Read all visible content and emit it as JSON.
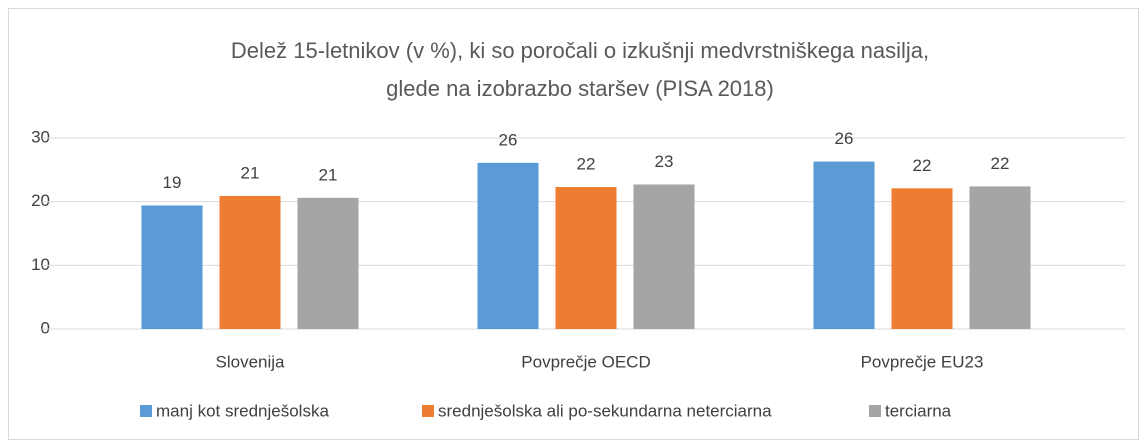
{
  "chart_data": {
    "type": "bar",
    "title": [
      "Delež 15-letnikov (v %), ki so poročali o izkušnji medvrstniškega nasilja,",
      "glede na izobrazbo staršev   (PISA 2018)"
    ],
    "categories": [
      "Slovenija",
      "Povprečje OECD",
      "Povprečje EU23"
    ],
    "series": [
      {
        "name": "manj kot srednješolska",
        "color": "#5b9bd5",
        "values": [
          19.4,
          26.1,
          26.3
        ],
        "value_labels": [
          "19",
          "26",
          "26"
        ]
      },
      {
        "name": "srednješolska ali po-sekundarna neterciarna",
        "color": "#ed7d31",
        "values": [
          20.9,
          22.3,
          22.1
        ],
        "value_labels": [
          "21",
          "22",
          "22"
        ]
      },
      {
        "name": "terciarna",
        "color": "#a5a5a5",
        "values": [
          20.6,
          22.7,
          22.4
        ],
        "value_labels": [
          "21",
          "23",
          "22"
        ]
      }
    ],
    "ylim": [
      0,
      30
    ],
    "yticks": [
      0,
      10,
      20,
      30
    ],
    "grid": true,
    "legend": "bottom"
  }
}
